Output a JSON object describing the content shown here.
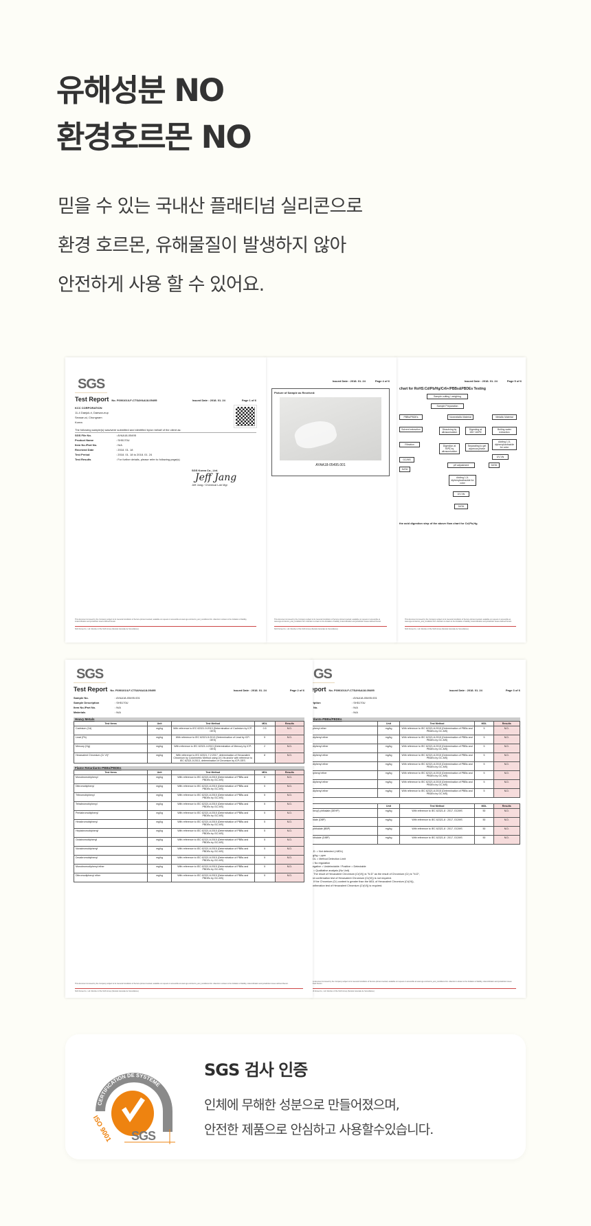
{
  "headline": {
    "line1": "유해성분 NO",
    "line2": "환경호르몬 NO"
  },
  "description": {
    "line1": "믿을 수 있는 국내산 플래티넘 실리콘으로",
    "line2": "환경 호르몬, 유해물질이 발생하지 않아",
    "line3": "안전하게 사용 할 수 있어요."
  },
  "documents": {
    "page1": {
      "logo": "SGS",
      "title": "Test Report",
      "no": "No. F690101/LF-CTSAYAA18-05495",
      "issued": "Issued Date : 2018. 01. 24",
      "page": "Page 1 of 6",
      "company": "KCC CORPORATION",
      "address": [
        "11-4 Daejuk-ri, Daesan-eup",
        "Seosan-si, Chungnam",
        "Korea"
      ],
      "intro": "The following sample(s) was/were submitted and identified by/on behalf of the client as:",
      "fields": [
        {
          "k": "SGS File No.",
          "v": ": AYAA18-05495"
        },
        {
          "k": "Product Name",
          "v": ": SH5170U"
        },
        {
          "k": "Item No./Part No.",
          "v": ": N/A"
        },
        {
          "k": "Received Date",
          "v": ": 2018. 01. 18"
        },
        {
          "k": "Test Period",
          "v": ": 2018. 01. 18  to  2018. 01. 24"
        },
        {
          "k": "Test Results",
          "v": ": For further details, please refer to following page(s)"
        }
      ],
      "signer_company": "SGS Korea Co., Ltd.",
      "signer": "Jeff Jang / Chemical Lab Mgr"
    },
    "page2": {
      "issued": "Issued Date : 2018. 01. 24",
      "page": "Page 4 of 6",
      "picture_label": "Picture of Sample as Received:",
      "caption": "AYAA18-05495.001"
    },
    "page3": {
      "issued": "Issued Date : 2018. 01. 24",
      "page": "Page 5 of 6",
      "chart_title": "chart for RoHS:Cd/Pb/Hg/Cr6+/PBBs&PBDEs Testing",
      "boxes": [
        "Sample cutting / weighing",
        "Sample Preparation",
        "PBBs/PBDEs",
        "Nonmetallic Material",
        "Metallic Material",
        "Solvent extraction",
        "Dissolving by ultrasonication",
        "Digesting at 150~160℃",
        "Boiling water extraction",
        "Filtration",
        "Digestion at 90℃ by ultrasonication",
        "Separating to get aqueous phase",
        "Adding 1,5-diphenylcarbazide for color",
        "GC/MS",
        "pH adjustment",
        "UV-Vis",
        "DATA",
        "Adding 1,5-diphenylcarbazide for color",
        "UV-Vis",
        "DATA",
        "DATA"
      ],
      "note": "the acid digestion step of the above flow chart for Cd,Pb,Hg"
    },
    "page4": {
      "logo": "SGS",
      "title": "Test Report",
      "no": "No. F690101/LF-CTSAYAA18-05495",
      "issued": "Issued Date : 2018. 01. 24",
      "page": "Page 2 of 6",
      "fields": [
        {
          "k": "Sample No.",
          "v": ": AYAA18-05495.001"
        },
        {
          "k": "Sample Description",
          "v": ": SH5170U"
        },
        {
          "k": "Item No./Part No.",
          "v": ": N/A"
        },
        {
          "k": "Materials",
          "v": ": N/A"
        }
      ],
      "headers": [
        "Test Items",
        "Unit",
        "Test Method",
        "MDL",
        "Results"
      ],
      "section1": "Heavy Metals",
      "rows1": [
        [
          "Cadmium (Cd)",
          "mg/kg",
          "With reference to IEC 62321-5:2013 (Determination of Cadmium by ICP-OES)",
          "0.5",
          "N.D."
        ],
        [
          "Lead (Pb)",
          "mg/kg",
          "With reference to IEC 62321-5:2013 (Determination of Lead by ICP-OES)",
          "5",
          "N.D."
        ],
        [
          "Mercury (Hg)",
          "mg/kg",
          "With reference to IEC 62321-4:2013 (Determination of Mercury by ICP-OES)",
          "2",
          "N.D."
        ],
        [
          "Hexavalent Chromium (Cr VI)*",
          "mg/kg",
          "With reference to IEC 62321-7-2:2017, determination of Hexavalent Chromium by Colorimetric Method using UV-Vis and/or with reference to IEC 62321-5:2013, determination of Chromium by ICP-OES.",
          "8",
          "N.D."
        ]
      ],
      "section2": "Flame Retardants-PBBs/PBDEs",
      "rows2": [
        [
          "Monobromobiphenyl",
          "mg/kg",
          "With reference to IEC 62321-6:2015 (Determination of PBBs and PBDEs by GC-MS)",
          "5",
          "N.D."
        ],
        [
          "Dibromobiphenyl",
          "mg/kg",
          "With reference to IEC 62321-6:2015 (Determination of PBBs and PBDEs by GC-MS)",
          "5",
          "N.D."
        ],
        [
          "Tribromobiphenyl",
          "mg/kg",
          "With reference to IEC 62321-6:2015 (Determination of PBBs and PBDEs by GC-MS)",
          "5",
          "N.D."
        ],
        [
          "Tetrabromobiphenyl",
          "mg/kg",
          "With reference to IEC 62321-6:2015 (Determination of PBBs and PBDEs by GC-MS)",
          "5",
          "N.D."
        ],
        [
          "Pentabromobiphenyl",
          "mg/kg",
          "With reference to IEC 62321-6:2015 (Determination of PBBs and PBDEs by GC-MS)",
          "5",
          "N.D."
        ],
        [
          "Hexabromobiphenyl",
          "mg/kg",
          "With reference to IEC 62321-6:2015 (Determination of PBBs and PBDEs by GC-MS)",
          "5",
          "N.D."
        ],
        [
          "Heptabromobiphenyl",
          "mg/kg",
          "With reference to IEC 62321-6:2015 (Determination of PBBs and PBDEs by GC-MS)",
          "5",
          "N.D."
        ],
        [
          "Octabromobiphenyl",
          "mg/kg",
          "With reference to IEC 62321-6:2015 (Determination of PBBs and PBDEs by GC-MS)",
          "5",
          "N.D."
        ],
        [
          "Nonabromobiphenyl",
          "mg/kg",
          "With reference to IEC 62321-6:2015 (Determination of PBBs and PBDEs by GC-MS)",
          "5",
          "N.D."
        ],
        [
          "Decabromobiphenyl",
          "mg/kg",
          "With reference to IEC 62321-6:2015 (Determination of PBBs and PBDEs by GC-MS)",
          "5",
          "N.D."
        ],
        [
          "Monobromodiphenyl ether",
          "mg/kg",
          "With reference to IEC 62321-6:2015 (Determination of PBBs and PBDEs by GC-MS)",
          "5",
          "N.D."
        ],
        [
          "Dibromodiphenyl ether",
          "mg/kg",
          "With reference to IEC 62321-6:2015 (Determination of PBBs and PBDEs by GC-MS)",
          "5",
          "N.D."
        ]
      ]
    },
    "page5": {
      "logo": "GS",
      "title": "eport",
      "no": "No. F690101/LF-CTSAYAA18-05495",
      "issued": "Issued Date : 2018. 01. 24",
      "page": "Page 3 of 6",
      "fields": [
        {
          "k": "",
          "v": ": AYAA18-05495.001"
        },
        {
          "k": "cription",
          "v": ": SH5170U"
        },
        {
          "k": "rt No.",
          "v": ": N/A"
        },
        {
          "k": "",
          "v": ": N/A"
        }
      ],
      "section1": "rdants-PBBs/PBDEs",
      "headers": [
        "",
        "Unit",
        "Test Method",
        "MDL",
        "Results"
      ],
      "rows1": [
        [
          "phenyl ether",
          "mg/kg",
          "With reference to IEC 62321-6:2015 (Determination of PBBs and PBDEs by GC-MS)",
          "5",
          "N.D."
        ],
        [
          "diphenyl ether",
          "mg/kg",
          "With reference to IEC 62321-6:2015 (Determination of PBBs and PBDEs by GC-MS)",
          "5",
          "N.D."
        ],
        [
          "diphenyl ether",
          "mg/kg",
          "With reference to IEC 62321-6:2015 (Determination of PBBs and PBDEs by GC-MS)",
          "5",
          "N.D."
        ],
        [
          "diphenyl ether",
          "mg/kg",
          "With reference to IEC 62321-6:2015 (Determination of PBBs and PBDEs by GC-MS)",
          "5",
          "N.D."
        ],
        [
          "diphenyl ether",
          "mg/kg",
          "With reference to IEC 62321-6:2015 (Determination of PBBs and PBDEs by GC-MS)",
          "5",
          "N.D."
        ],
        [
          "iphenyl ether",
          "mg/kg",
          "With reference to IEC 62321-6:2015 (Determination of PBBs and PBDEs by GC-MS)",
          "5",
          "N.D."
        ],
        [
          "diphenyl ether",
          "mg/kg",
          "With reference to IEC 62321-6:2015 (Determination of PBBs and PBDEs by GC-MS)",
          "5",
          "N.D."
        ],
        [
          "diphenyl ether",
          "mg/kg",
          "With reference to IEC 62321-6:2015 (Determination of PBBs and PBDEs by GC-MS)",
          "5",
          "N.D."
        ]
      ],
      "rows2": [
        [
          "hexyl) phthalate (DEHP)",
          "mg/kg",
          "With reference to IEC 62321-8 : 2017, GC/MS",
          "50",
          "N.D."
        ],
        [
          "hlate (DBP)",
          "mg/kg",
          "With reference to IEC 62321-8 : 2017, GC/MS",
          "50",
          "N.D."
        ],
        [
          "phthalate (BBP)",
          "mg/kg",
          "With reference to IEC 62321-8 : 2017, GC/MS",
          "50",
          "N.D."
        ],
        [
          "hthalate (DIBP)",
          "mg/kg",
          "With reference to IEC 62321-8 : 2017, GC/MS",
          "50",
          "N.D."
        ]
      ],
      "notes": [
        "N.D. = Not detected (<MDL)",
        "mg/kg = ppm",
        "MDL = Method Detection Limit",
        "- = No regulation",
        "Negative = Undetectable / Positive = Detectable",
        "** = Qualitative analysis (No Unit)",
        "a. The result of Hexavalent Chromium (Cr(VI)) is \"N.D\" as the result of Chromium (Cr) is \"N.D\",",
        "and confirmation test of Hexavalent Chromium (Cr(VI)) is not required.",
        "b. If the Chromium (Cr) content is greater than the MDL of Hexavalent Chromium (Cr(VI)),",
        "confirmation test of Hexavalent Chromium (Cr(VI)) is required."
      ]
    },
    "footer_text": "This document is issued by the Company subject to its General Conditions of Service printed overleaf, available on request or accessible at www.sgs.com/terms_and_conditions.htm. Attention is drawn to the limitation of liability, indemnification and jurisdiction issues defined therein.",
    "footer_address": "SGS Korea Co., Ltd. Member of the SGS Group (Société Générale de Surveillance)"
  },
  "certification": {
    "badge_arc_text": "CERTIFICATION DE SYSTEME",
    "badge_iso": "ISO 9001",
    "badge_logo": "SGS",
    "title": "SGS 검사 인증",
    "line1": "인체에 무해한 성분으로 만들어졌으며,",
    "line2": "안전한 제품으로 안심하고 사용할수있습니다."
  },
  "colors": {
    "background": "#fdfdf7",
    "heading": "#333333",
    "badge_orange": "#ee8310",
    "badge_gray": "#8a8a8a",
    "result_cell": "#f6dcdc"
  }
}
